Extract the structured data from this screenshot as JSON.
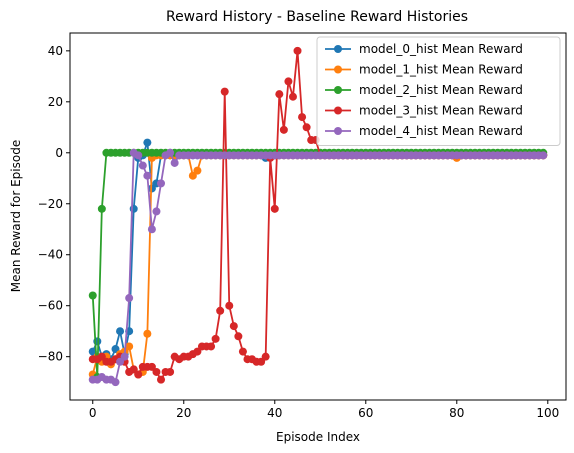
{
  "chart_data": {
    "type": "line",
    "title": "Reward History - Baseline Reward Histories",
    "xlabel": "Episode Index",
    "ylabel": "Mean Reward for Episode",
    "xlim": [
      -5,
      104
    ],
    "ylim": [
      -97,
      47
    ],
    "xticks": [
      0,
      20,
      40,
      60,
      80,
      100
    ],
    "yticks": [
      -80,
      -60,
      -40,
      -20,
      0,
      20,
      40
    ],
    "grid": false,
    "legend_position": "top-right",
    "series": [
      {
        "name": "model_0_hist Mean Reward",
        "color": "#1f77b4",
        "x": [
          0,
          1,
          2,
          3,
          4,
          5,
          6,
          7,
          8,
          9,
          10,
          11,
          12,
          13,
          14,
          15,
          16,
          17,
          18,
          19,
          20,
          21,
          22,
          23,
          24,
          25,
          26,
          27,
          28,
          29,
          30,
          31,
          32,
          33,
          34,
          35,
          36,
          37,
          38,
          39,
          40,
          41,
          42,
          43,
          44,
          45,
          46,
          47,
          48,
          49,
          50,
          51,
          52,
          53,
          54,
          55,
          56,
          57,
          58,
          59,
          60,
          61,
          62,
          63,
          64,
          65,
          66,
          67,
          68,
          69,
          70,
          71,
          72,
          73,
          74,
          75,
          76,
          77,
          78,
          79,
          80,
          81,
          82,
          83,
          84,
          85,
          86,
          87,
          88,
          89,
          90,
          91,
          92,
          93,
          94,
          95,
          96,
          97,
          98,
          99
        ],
        "values": [
          -78,
          -74,
          -80,
          -79,
          -81,
          -77,
          -70,
          -79,
          -70,
          -22,
          -2,
          -1,
          4,
          -14,
          -12,
          -1,
          -1,
          -1,
          -1,
          -1,
          -1,
          -1,
          -1,
          -1,
          -1,
          -1,
          -1,
          -1,
          -1,
          -1,
          -1,
          -1,
          -1,
          -1,
          -1,
          -1,
          -1,
          -1,
          -2,
          -1,
          -1,
          -1,
          -1,
          -1,
          -1,
          -1,
          -1,
          -1,
          -1,
          -1,
          -1,
          -1,
          -1,
          -1,
          -1,
          -1,
          -1,
          -1,
          -1,
          -1,
          -1,
          -1,
          -1,
          -1,
          -1,
          -1,
          -1,
          -1,
          -1,
          -1,
          -1,
          -1,
          -1,
          -1,
          -1,
          -1,
          -1,
          -1,
          -1,
          -1,
          -1,
          -1,
          -1,
          -1,
          -1,
          -1,
          -1,
          -1,
          -1,
          -1,
          -1,
          -1,
          -1,
          -1,
          -1,
          -1,
          -1,
          -1,
          -1,
          -1
        ]
      },
      {
        "name": "model_1_hist Mean Reward",
        "color": "#ff7f0e",
        "x": [
          0,
          1,
          2,
          3,
          4,
          5,
          6,
          7,
          8,
          9,
          10,
          11,
          12,
          13,
          14,
          15,
          16,
          17,
          18,
          19,
          20,
          21,
          22,
          23,
          24,
          25,
          26,
          27,
          28,
          29,
          30,
          31,
          32,
          33,
          34,
          35,
          36,
          37,
          38,
          39,
          40,
          41,
          42,
          43,
          44,
          45,
          46,
          47,
          48,
          49,
          50,
          51,
          52,
          53,
          54,
          55,
          56,
          57,
          58,
          59,
          60,
          61,
          62,
          63,
          64,
          65,
          66,
          67,
          68,
          69,
          70,
          71,
          72,
          73,
          74,
          75,
          76,
          77,
          78,
          79,
          80,
          81,
          82,
          83,
          84,
          85,
          86,
          87,
          88,
          89,
          90,
          91,
          92,
          93,
          94,
          95,
          96,
          97,
          98,
          99
        ],
        "values": [
          -87,
          -80,
          -82,
          -80,
          -83,
          -81,
          -79,
          -78,
          -76,
          -85,
          -87,
          -86,
          -71,
          -2,
          -1,
          -1,
          -1,
          -1,
          -1,
          -1,
          -1,
          -1,
          -9,
          -7,
          -1,
          -1,
          -1,
          -1,
          -1,
          -1,
          -1,
          -1,
          -1,
          -1,
          -1,
          -1,
          -1,
          -1,
          -1,
          -1,
          -1,
          -1,
          -1,
          -1,
          -1,
          -1,
          -1,
          -1,
          -1,
          -1,
          -1,
          -1,
          -1,
          -1,
          -1,
          -1,
          -1,
          -1,
          -1,
          -1,
          -1,
          -1,
          -1,
          -1,
          -1,
          -1,
          -1,
          -1,
          -1,
          -1,
          -1,
          -1,
          -1,
          -1,
          -1,
          -1,
          -1,
          -1,
          -1,
          -1,
          -2,
          -1,
          -1,
          -1,
          -1,
          -1,
          -1,
          -1,
          -1,
          -1,
          -1,
          -1,
          -1,
          -1,
          -1,
          -1,
          -1,
          -1,
          -1,
          -1
        ]
      },
      {
        "name": "model_2_hist Mean Reward",
        "color": "#2ca02c",
        "x": [
          0,
          1,
          2,
          3,
          4,
          5,
          6,
          7,
          8,
          9,
          10,
          11,
          12,
          13,
          14,
          15,
          16,
          17,
          18,
          19,
          20,
          21,
          22,
          23,
          24,
          25,
          26,
          27,
          28,
          29,
          30,
          31,
          32,
          33,
          34,
          35,
          36,
          37,
          38,
          39,
          40,
          41,
          42,
          43,
          44,
          45,
          46,
          47,
          48,
          49,
          50,
          51,
          52,
          53,
          54,
          55,
          56,
          57,
          58,
          59,
          60,
          61,
          62,
          63,
          64,
          65,
          66,
          67,
          68,
          69,
          70,
          71,
          72,
          73,
          74,
          75,
          76,
          77,
          78,
          79,
          80,
          81,
          82,
          83,
          84,
          85,
          86,
          87,
          88,
          89,
          90,
          91,
          92,
          93,
          94,
          95,
          96,
          97,
          98,
          99
        ],
        "values": [
          -56,
          -88,
          -22,
          0,
          0,
          0,
          0,
          0,
          0,
          0,
          0,
          0,
          0,
          0,
          0,
          0,
          0,
          0,
          0,
          0,
          0,
          0,
          0,
          0,
          0,
          0,
          0,
          0,
          0,
          0,
          0,
          0,
          0,
          0,
          0,
          0,
          0,
          0,
          0,
          0,
          0,
          0,
          0,
          0,
          0,
          0,
          0,
          0,
          0,
          0,
          0,
          0,
          0,
          0,
          0,
          0,
          0,
          0,
          0,
          0,
          0,
          0,
          0,
          0,
          0,
          0,
          0,
          0,
          0,
          0,
          0,
          0,
          0,
          0,
          0,
          0,
          0,
          0,
          0,
          0,
          0,
          0,
          0,
          0,
          0,
          0,
          0,
          0,
          0,
          0,
          0,
          0,
          0,
          0,
          0,
          0,
          0,
          0,
          0,
          0
        ]
      },
      {
        "name": "model_3_hist Mean Reward",
        "color": "#d62728",
        "x": [
          0,
          1,
          2,
          3,
          4,
          5,
          6,
          7,
          8,
          9,
          10,
          11,
          12,
          13,
          14,
          15,
          16,
          17,
          18,
          19,
          20,
          21,
          22,
          23,
          24,
          25,
          26,
          27,
          28,
          29,
          30,
          31,
          32,
          33,
          34,
          35,
          36,
          37,
          38,
          39,
          40,
          41,
          42,
          43,
          44,
          45,
          46,
          47,
          48,
          49,
          50,
          51,
          52,
          53,
          54,
          55,
          56,
          57,
          58,
          59,
          60,
          61,
          62,
          63,
          64,
          65,
          66,
          67,
          68,
          69,
          70,
          71,
          72,
          73,
          74,
          75,
          76,
          77,
          78,
          79,
          80,
          81,
          82,
          83,
          84,
          85,
          86,
          87,
          88,
          89,
          90,
          91,
          92,
          93,
          94,
          95,
          96,
          97,
          98,
          99
        ],
        "values": [
          -81,
          -81,
          -80,
          -82,
          -82,
          -81,
          -80,
          -82,
          -86,
          -85,
          -87,
          -84,
          -84,
          -84,
          -86,
          -89,
          -86,
          -86,
          -80,
          -81,
          -80,
          -80,
          -79,
          -78,
          -76,
          -76,
          -76,
          -73,
          -62,
          24,
          -60,
          -68,
          -72,
          -78,
          -81,
          -81,
          -82,
          -82,
          -80,
          -2,
          -22,
          23,
          9,
          28,
          22,
          40,
          14,
          10,
          5,
          5,
          -1,
          -1,
          -1,
          -1,
          -1,
          -1,
          -1,
          -1,
          -1,
          -1,
          -1,
          -1,
          -1,
          -1,
          -1,
          -1,
          -1,
          -1,
          -1,
          -1,
          -1,
          -1,
          -1,
          -1,
          -1,
          -1,
          -1,
          -1,
          -1,
          -1,
          -1,
          -1,
          -1,
          -1,
          -1,
          -1,
          -1,
          -1,
          -1,
          -1,
          -1,
          -1,
          -1,
          -1,
          -1,
          -1,
          -1,
          -1,
          -1,
          -1
        ]
      },
      {
        "name": "model_4_hist Mean Reward",
        "color": "#9467bd",
        "x": [
          0,
          1,
          2,
          3,
          4,
          5,
          6,
          7,
          8,
          9,
          10,
          11,
          12,
          13,
          14,
          15,
          16,
          17,
          18,
          19,
          20,
          21,
          22,
          23,
          24,
          25,
          26,
          27,
          28,
          29,
          30,
          31,
          32,
          33,
          34,
          35,
          36,
          37,
          38,
          39,
          40,
          41,
          42,
          43,
          44,
          45,
          46,
          47,
          48,
          49,
          50,
          51,
          52,
          53,
          54,
          55,
          56,
          57,
          58,
          59,
          60,
          61,
          62,
          63,
          64,
          65,
          66,
          67,
          68,
          69,
          70,
          71,
          72,
          73,
          74,
          75,
          76,
          77,
          78,
          79,
          80,
          81,
          82,
          83,
          84,
          85,
          86,
          87,
          88,
          89,
          90,
          91,
          92,
          93,
          94,
          95,
          96,
          97,
          98,
          99
        ],
        "values": [
          -89,
          -89,
          -88,
          -89,
          -89,
          -90,
          -82,
          -80,
          -57,
          0,
          -1,
          -5,
          -9,
          -30,
          -23,
          -12,
          -1,
          0,
          -4,
          -1,
          -1,
          -1,
          -1,
          -1,
          -1,
          -1,
          -1,
          -1,
          -1,
          -1,
          -1,
          -1,
          -1,
          -1,
          -1,
          -1,
          -1,
          -1,
          -1,
          -1,
          -1,
          -1,
          -1,
          -1,
          -1,
          -1,
          -1,
          -1,
          -1,
          -1,
          -1,
          -1,
          -1,
          -1,
          -1,
          -1,
          -1,
          -1,
          -1,
          -1,
          -1,
          -1,
          -1,
          -1,
          -1,
          -1,
          -1,
          -1,
          -1,
          -1,
          -1,
          -1,
          -1,
          -1,
          -1,
          -1,
          -1,
          -1,
          -1,
          -1,
          -1,
          -1,
          -1,
          -1,
          -1,
          -1,
          -1,
          -1,
          -1,
          -1,
          -1,
          -1,
          -1,
          -1,
          -1,
          -1,
          -1,
          -1,
          -1,
          -1
        ]
      }
    ]
  }
}
